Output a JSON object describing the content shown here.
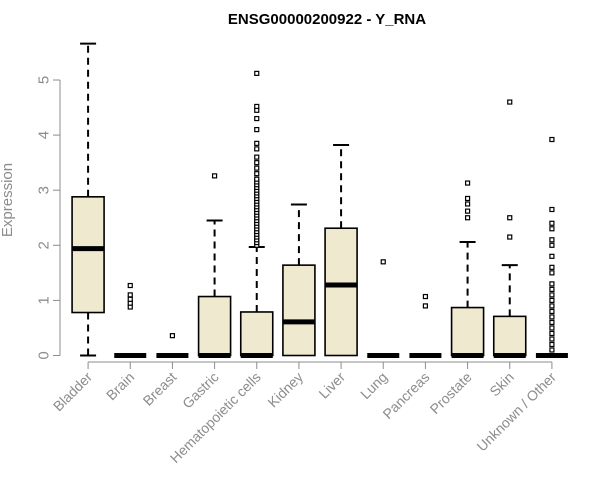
{
  "chart_data": {
    "type": "boxplot",
    "title": "ENSG00000200922 - Y_RNA",
    "ylabel": "Expression",
    "xlabel": "",
    "ylim": [
      0,
      5.75
    ],
    "yticks": [
      0,
      1,
      2,
      3,
      4,
      5
    ],
    "grid": false,
    "box_fill": "#efe9d0",
    "box_stroke": "#000000",
    "categories": [
      "Bladder",
      "Brain",
      "Breast",
      "Gastric",
      "Hematopoietic cells",
      "Kidney",
      "Liver",
      "Lung",
      "Pancreas",
      "Prostate",
      "Skin",
      "Unknown / Other"
    ],
    "boxes": [
      {
        "q1": 0.78,
        "median": 1.94,
        "q3": 2.88,
        "whisker_low": 0,
        "whisker_high": 5.66,
        "outliers": []
      },
      {
        "q1": 0,
        "median": 0,
        "q3": 0,
        "whisker_low": 0,
        "whisker_high": 0,
        "outliers": [
          0.88,
          0.95,
          1.02,
          1.1,
          1.27
        ]
      },
      {
        "q1": 0,
        "median": 0,
        "q3": 0,
        "whisker_low": 0,
        "whisker_high": 0,
        "outliers": [
          0.36
        ]
      },
      {
        "q1": 0,
        "median": 0,
        "q3": 1.07,
        "whisker_low": 0,
        "whisker_high": 2.45,
        "outliers": [
          3.26
        ]
      },
      {
        "q1": 0,
        "median": 0,
        "q3": 0.79,
        "whisker_low": 0,
        "whisker_high": 1.97,
        "outliers": [
          2.0,
          2.05,
          2.1,
          2.15,
          2.2,
          2.25,
          2.3,
          2.35,
          2.4,
          2.45,
          2.5,
          2.55,
          2.6,
          2.65,
          2.7,
          2.75,
          2.8,
          2.85,
          2.9,
          2.95,
          3.0,
          3.05,
          3.1,
          3.15,
          3.2,
          3.3,
          3.4,
          3.5,
          3.6,
          3.75,
          3.85,
          4.1,
          4.3,
          4.45,
          4.52,
          5.12
        ]
      },
      {
        "q1": 0,
        "median": 0.61,
        "q3": 1.64,
        "whisker_low": 0,
        "whisker_high": 2.74,
        "outliers": []
      },
      {
        "q1": 0,
        "median": 1.28,
        "q3": 2.31,
        "whisker_low": 0,
        "whisker_high": 3.82,
        "outliers": []
      },
      {
        "q1": 0,
        "median": 0,
        "q3": 0,
        "whisker_low": 0,
        "whisker_high": 0,
        "outliers": [
          1.7
        ]
      },
      {
        "q1": 0,
        "median": 0,
        "q3": 0,
        "whisker_low": 0,
        "whisker_high": 0,
        "outliers": [
          0.9,
          1.07
        ]
      },
      {
        "q1": 0,
        "median": 0,
        "q3": 0.87,
        "whisker_low": 0,
        "whisker_high": 2.06,
        "outliers": [
          2.5,
          2.62,
          2.75,
          2.85,
          3.13
        ]
      },
      {
        "q1": 0,
        "median": 0,
        "q3": 0.71,
        "whisker_low": 0,
        "whisker_high": 1.64,
        "outliers": [
          2.15,
          2.5,
          4.6
        ]
      },
      {
        "q1": 0,
        "median": 0,
        "q3": 0,
        "whisker_low": 0,
        "whisker_high": 0,
        "outliers": [
          0.1,
          0.2,
          0.3,
          0.4,
          0.5,
          0.6,
          0.7,
          0.8,
          0.9,
          1.0,
          1.1,
          1.2,
          1.3,
          1.5,
          1.6,
          1.8,
          2.0,
          2.1,
          2.3,
          2.4,
          2.65,
          3.92
        ]
      }
    ]
  }
}
